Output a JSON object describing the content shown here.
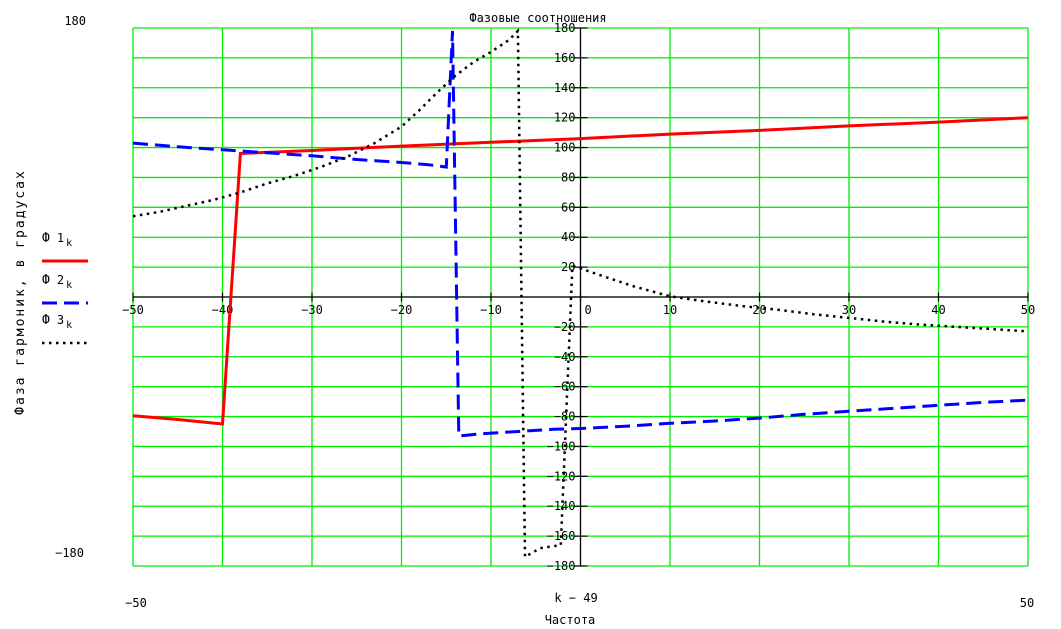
{
  "title": "Фазовые соотношения",
  "y_axis_label": "Фаза гармоник, в градусах",
  "x_axis_label": "Частота",
  "x_axis_expression": "k − 49",
  "outer_labels": {
    "y_max": "180",
    "y_min": "−180",
    "x_min": "−50",
    "x_max": "50"
  },
  "legend": {
    "items": [
      {
        "phi": "Ф",
        "index": "1",
        "sub": "k"
      },
      {
        "phi": "Ф",
        "index": "2",
        "sub": "k"
      },
      {
        "phi": "Ф",
        "index": "3",
        "sub": "k"
      }
    ]
  },
  "chart_data": {
    "type": "line",
    "title": "Фазовые соотношения",
    "xlabel": "Частота",
    "ylabel": "Фаза гармоник, в градусах",
    "xlim": [
      -50,
      50
    ],
    "ylim": [
      -180,
      180
    ],
    "x_tick_step": 10,
    "y_tick_step": 20,
    "grid": true,
    "legend_position": "left",
    "colors": {
      "grid": "#00ee00",
      "axis": "#000000",
      "background": "#ffffff"
    },
    "series": [
      {
        "name": "Ф1k",
        "color": "#ff0000",
        "style": "solid",
        "points": [
          [
            -50,
            -79.5
          ],
          [
            -45,
            -82
          ],
          [
            -40,
            -85
          ],
          [
            -38,
            96
          ],
          [
            -30,
            98
          ],
          [
            -20,
            101
          ],
          [
            -10,
            103.5
          ],
          [
            0,
            106
          ],
          [
            10,
            109
          ],
          [
            20,
            111.5
          ],
          [
            30,
            114.5
          ],
          [
            40,
            117
          ],
          [
            50,
            120
          ]
        ]
      },
      {
        "name": "Ф2k",
        "color": "#0000ff",
        "style": "dashed",
        "points": [
          [
            -50,
            103
          ],
          [
            -45,
            100.5
          ],
          [
            -40,
            98.5
          ],
          [
            -35,
            96.5
          ],
          [
            -30,
            94.5
          ],
          [
            -25,
            92
          ],
          [
            -20,
            90
          ],
          [
            -17,
            88.5
          ],
          [
            -15,
            87
          ],
          [
            -14.3,
            178
          ],
          [
            -13.6,
            -93
          ],
          [
            -11,
            -91.5
          ],
          [
            -7,
            -90
          ],
          [
            -3,
            -88.5
          ],
          [
            0,
            -88
          ],
          [
            5,
            -86.5
          ],
          [
            10,
            -84.5
          ],
          [
            15,
            -83
          ],
          [
            20,
            -81
          ],
          [
            25,
            -78.5
          ],
          [
            30,
            -76.5
          ],
          [
            35,
            -74.5
          ],
          [
            40,
            -72.5
          ],
          [
            45,
            -70.5
          ],
          [
            50,
            -69
          ]
        ]
      },
      {
        "name": "Ф3k",
        "color": "#000000",
        "style": "dotted",
        "points": [
          [
            -50,
            54
          ],
          [
            -47,
            57
          ],
          [
            -44,
            61
          ],
          [
            -41,
            65
          ],
          [
            -38,
            70
          ],
          [
            -35,
            76
          ],
          [
            -32,
            81
          ],
          [
            -29,
            87
          ],
          [
            -26,
            94
          ],
          [
            -23,
            103
          ],
          [
            -20,
            114
          ],
          [
            -18,
            125
          ],
          [
            -16,
            137
          ],
          [
            -14,
            148
          ],
          [
            -12,
            157
          ],
          [
            -10,
            164
          ],
          [
            -8,
            172
          ],
          [
            -7,
            178
          ],
          [
            -6.2,
            -174
          ],
          [
            -4.5,
            -168
          ],
          [
            -2.2,
            -166
          ],
          [
            -0.9,
            21
          ],
          [
            2,
            15
          ],
          [
            6,
            7
          ],
          [
            10,
            0.5
          ],
          [
            14,
            -3
          ],
          [
            18,
            -6
          ],
          [
            22,
            -8.5
          ],
          [
            26,
            -11.5
          ],
          [
            30,
            -14
          ],
          [
            34,
            -16.5
          ],
          [
            38,
            -18.5
          ],
          [
            42,
            -20
          ],
          [
            46,
            -21.5
          ],
          [
            50,
            -23
          ]
        ]
      }
    ]
  }
}
